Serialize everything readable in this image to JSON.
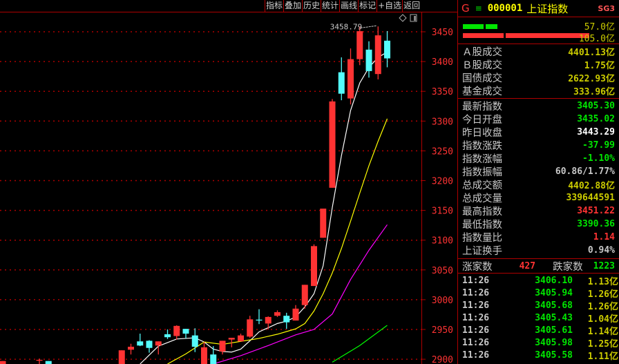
{
  "toolbar": {
    "items": [
      "指标",
      "叠加",
      "历史",
      "统计",
      "画线",
      "标记",
      "+自选",
      "返回"
    ]
  },
  "colors": {
    "up": "#ff3333",
    "down": "#54fcfc",
    "grid": "#b00000",
    "axis_label": "#ff3333",
    "ma5": "#ffffff",
    "ma10": "#ffff00",
    "ma20": "#ff00ff",
    "ma60": "#00ff00",
    "green": "#00e600",
    "red": "#ff3333",
    "yellow": "#cccc00",
    "white": "#ffffff",
    "gray": "#c8c8c8"
  },
  "icons": [
    "diamond-icon",
    "square-icon"
  ],
  "chart_data": {
    "type": "candlestick",
    "ylim": [
      2892,
      3480
    ],
    "yticks": [
      3450,
      3400,
      3350,
      3300,
      3250,
      3200,
      3150,
      3100,
      3050,
      3000,
      2950,
      2900
    ],
    "grid": true,
    "max_label": "3458.79",
    "candles": [
      {
        "i": 0,
        "o": 2880,
        "h": 2897,
        "l": 2875,
        "c": 2897
      },
      {
        "i": 4,
        "o": 2898,
        "h": 2901,
        "l": 2890,
        "c": 2899
      },
      {
        "i": 5,
        "o": 2897,
        "h": 2897,
        "l": 2880,
        "c": 2885
      },
      {
        "i": 13,
        "o": 2885,
        "h": 2915,
        "l": 2880,
        "c": 2915
      },
      {
        "i": 14,
        "o": 2916,
        "h": 2926,
        "l": 2908,
        "c": 2921
      },
      {
        "i": 15,
        "o": 2930,
        "h": 2943,
        "l": 2922,
        "c": 2923
      },
      {
        "i": 16,
        "o": 2931,
        "h": 2932,
        "l": 2911,
        "c": 2919
      },
      {
        "i": 17,
        "o": 2923,
        "h": 2930,
        "l": 2908,
        "c": 2930
      },
      {
        "i": 18,
        "o": 2942,
        "h": 2950,
        "l": 2934,
        "c": 2937
      },
      {
        "i": 19,
        "o": 2939,
        "h": 2957,
        "l": 2933,
        "c": 2956
      },
      {
        "i": 20,
        "o": 2951,
        "h": 2951,
        "l": 2935,
        "c": 2943
      },
      {
        "i": 21,
        "o": 2940,
        "h": 2952,
        "l": 2912,
        "c": 2921
      },
      {
        "i": 22,
        "o": 2885,
        "h": 2929,
        "l": 2880,
        "c": 2920
      },
      {
        "i": 23,
        "o": 2908,
        "h": 2922,
        "l": 2880,
        "c": 2885
      },
      {
        "i": 24,
        "o": 2913,
        "h": 2931,
        "l": 2908,
        "c": 2931
      },
      {
        "i": 25,
        "o": 2933,
        "h": 2936,
        "l": 2920,
        "c": 2936
      },
      {
        "i": 26,
        "o": 2930,
        "h": 2943,
        "l": 2930,
        "c": 2940
      },
      {
        "i": 27,
        "o": 2938,
        "h": 2973,
        "l": 2936,
        "c": 2967
      },
      {
        "i": 28,
        "o": 2966.5,
        "h": 2984,
        "l": 2959,
        "c": 2965.5
      },
      {
        "i": 29,
        "o": 2960,
        "h": 2972,
        "l": 2950,
        "c": 2971
      },
      {
        "i": 30,
        "o": 2973,
        "h": 2982,
        "l": 2971,
        "c": 2979
      },
      {
        "i": 31,
        "o": 2973,
        "h": 2978,
        "l": 2951,
        "c": 2962
      },
      {
        "i": 32,
        "o": 2965,
        "h": 2991,
        "l": 2965,
        "c": 2985
      },
      {
        "i": 33,
        "o": 2991,
        "h": 3025,
        "l": 2985,
        "c": 3025
      },
      {
        "i": 34,
        "o": 3023,
        "h": 3093,
        "l": 3023,
        "c": 3090
      },
      {
        "i": 35,
        "o": 3104,
        "h": 3153,
        "l": 3104,
        "c": 3153
      },
      {
        "i": 36,
        "o": 3188,
        "h": 3337,
        "l": 3188,
        "c": 3333
      },
      {
        "i": 37,
        "o": 3382,
        "h": 3407,
        "l": 3335,
        "c": 3346
      },
      {
        "i": 38,
        "o": 3338,
        "h": 3422,
        "l": 3328,
        "c": 3404
      },
      {
        "i": 39,
        "o": 3404,
        "h": 3458.79,
        "l": 3394,
        "c": 3451
      },
      {
        "i": 40,
        "o": 3420,
        "h": 3434,
        "l": 3373,
        "c": 3384
      },
      {
        "i": 41,
        "o": 3379,
        "h": 3459,
        "l": 3370,
        "c": 3444
      },
      {
        "i": 42,
        "o": 3435.02,
        "h": 3451.22,
        "l": 3390.36,
        "c": 3405.3
      }
    ],
    "ma": [
      {
        "key": "ma5",
        "points": [
          [
            15,
            2892
          ],
          [
            17,
            2922
          ],
          [
            19,
            2934
          ],
          [
            21,
            2936
          ],
          [
            22,
            2929
          ],
          [
            23,
            2917
          ],
          [
            24,
            2913
          ],
          [
            25,
            2912
          ],
          [
            26,
            2917
          ],
          [
            27,
            2931
          ],
          [
            28,
            2946
          ],
          [
            29,
            2953
          ],
          [
            30,
            2960
          ],
          [
            31,
            2964
          ],
          [
            32,
            2971
          ],
          [
            33,
            2988
          ],
          [
            34,
            3010
          ],
          [
            35,
            3057
          ],
          [
            36,
            3155
          ],
          [
            37,
            3242
          ],
          [
            38,
            3318
          ],
          [
            39,
            3364
          ],
          [
            40,
            3390
          ],
          [
            41,
            3407
          ],
          [
            42,
            3416
          ]
        ]
      },
      {
        "key": "ma10",
        "points": [
          [
            18,
            2892
          ],
          [
            20,
            2909
          ],
          [
            22,
            2929
          ],
          [
            24,
            2925
          ],
          [
            26,
            2930
          ],
          [
            28,
            2935
          ],
          [
            30,
            2942
          ],
          [
            32,
            2951
          ],
          [
            33,
            2960
          ],
          [
            34,
            2981
          ],
          [
            35,
            3010
          ],
          [
            36,
            3045
          ],
          [
            37,
            3086
          ],
          [
            38,
            3132
          ],
          [
            39,
            3179
          ],
          [
            40,
            3225
          ],
          [
            41,
            3266
          ],
          [
            42,
            3304
          ]
        ]
      },
      {
        "key": "ma20",
        "points": [
          [
            23,
            2892
          ],
          [
            26,
            2906
          ],
          [
            29,
            2923
          ],
          [
            32,
            2941
          ],
          [
            34,
            2950
          ],
          [
            36,
            2976
          ],
          [
            38,
            3034
          ],
          [
            40,
            3083
          ],
          [
            42,
            3126
          ]
        ]
      },
      {
        "key": "ma60",
        "points": [
          [
            36,
            2895
          ],
          [
            39,
            2923
          ],
          [
            42,
            2957
          ]
        ]
      }
    ]
  },
  "panel": {
    "header": {
      "g": "G",
      "menu": "≡",
      "code": "000001",
      "name": "上证指数",
      "tag": "SG3"
    },
    "bars": {
      "green_value": "57.0亿",
      "red_value": "105.0亿",
      "green_fraction": 0.543,
      "red_fraction": 1.0
    },
    "turnover": [
      {
        "label": "Ａ股成交",
        "value": "4401.13亿"
      },
      {
        "label": "Ｂ股成交",
        "value": "1.75亿"
      },
      {
        "label": "国债成交",
        "value": "2622.93亿"
      },
      {
        "label": "基金成交",
        "value": "333.96亿"
      }
    ],
    "stats": [
      {
        "label": "最新指数",
        "value": "3405.30",
        "color": "green"
      },
      {
        "label": "今日开盘",
        "value": "3435.02",
        "color": "green"
      },
      {
        "label": "昨日收盘",
        "value": "3443.29",
        "color": "white"
      },
      {
        "label": "指数涨跌",
        "value": "-37.99",
        "color": "green"
      },
      {
        "label": "指数涨幅",
        "value": "-1.10%",
        "color": "green"
      },
      {
        "label": "指数振幅",
        "value": "60.86/1.77%",
        "color": "gray"
      },
      {
        "label": "总成交额",
        "value": "4402.88亿",
        "color": "yellow"
      },
      {
        "label": "总成交量",
        "value": "339644591",
        "color": "yellow"
      },
      {
        "label": "最高指数",
        "value": "3451.22",
        "color": "red"
      },
      {
        "label": "最低指数",
        "value": "3390.36",
        "color": "green"
      },
      {
        "label": "指数量比",
        "value": "1.14",
        "color": "red"
      },
      {
        "label": "上证换手",
        "value": "0.94%",
        "color": "gray"
      }
    ],
    "breadth": {
      "up_label": "涨家数",
      "up_value": "427",
      "down_label": "跌家数",
      "down_value": "1223"
    },
    "ticks": [
      {
        "time": "11:26",
        "price": "3406.10",
        "amount": "1.13亿"
      },
      {
        "time": "11:26",
        "price": "3405.94",
        "amount": "1.26亿"
      },
      {
        "time": "11:26",
        "price": "3405.68",
        "amount": "1.26亿"
      },
      {
        "time": "11:26",
        "price": "3405.43",
        "amount": "1.04亿"
      },
      {
        "time": "11:26",
        "price": "3405.61",
        "amount": "1.14亿"
      },
      {
        "time": "11:26",
        "price": "3405.98",
        "amount": "1.25亿"
      },
      {
        "time": "11:26",
        "price": "3405.58",
        "amount": "1.11亿"
      }
    ]
  }
}
